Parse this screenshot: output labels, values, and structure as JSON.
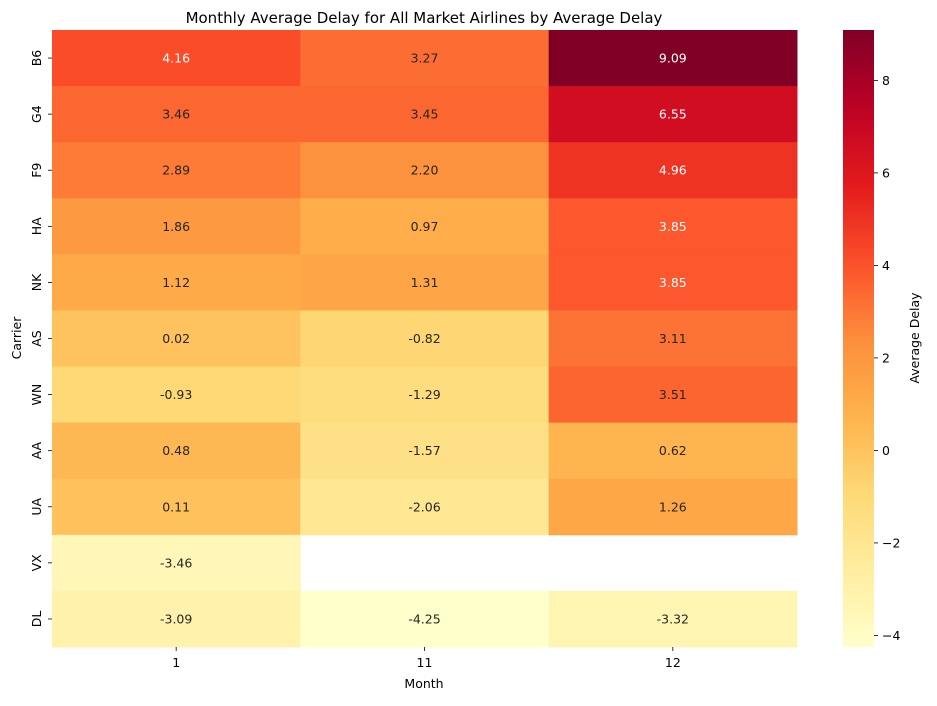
{
  "chart_data": {
    "type": "heatmap",
    "title": "Monthly Average Delay for All Market Airlines by Average Delay",
    "xlabel": "Month",
    "ylabel": "Carrier",
    "x_categories": [
      "1",
      "11",
      "12"
    ],
    "y_categories": [
      "B6",
      "G4",
      "F9",
      "HA",
      "NK",
      "AS",
      "WN",
      "AA",
      "UA",
      "VX",
      "DL"
    ],
    "values": [
      [
        4.16,
        3.27,
        9.09
      ],
      [
        3.46,
        3.45,
        6.55
      ],
      [
        2.89,
        2.2,
        4.96
      ],
      [
        1.86,
        0.97,
        3.85
      ],
      [
        1.12,
        1.31,
        3.85
      ],
      [
        0.02,
        -0.82,
        3.11
      ],
      [
        -0.93,
        -1.29,
        3.51
      ],
      [
        0.48,
        -1.57,
        0.62
      ],
      [
        0.11,
        -2.06,
        1.26
      ],
      [
        -3.46,
        null,
        null
      ],
      [
        -3.09,
        -4.25,
        -3.32
      ]
    ],
    "value_format": "0.00",
    "colorscale": "YlOrRd",
    "colorbar": {
      "label": "Average Delay",
      "range": [
        -4.25,
        9.09
      ],
      "ticks": [
        -4,
        -2,
        0,
        2,
        4,
        6,
        8
      ]
    }
  }
}
